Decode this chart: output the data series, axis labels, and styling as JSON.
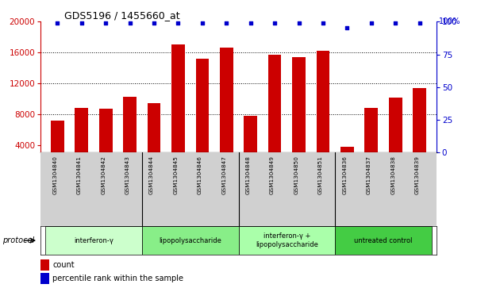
{
  "title": "GDS5196 / 1455660_at",
  "samples": [
    "GSM1304840",
    "GSM1304841",
    "GSM1304842",
    "GSM1304843",
    "GSM1304844",
    "GSM1304845",
    "GSM1304846",
    "GSM1304847",
    "GSM1304848",
    "GSM1304849",
    "GSM1304850",
    "GSM1304851",
    "GSM1304836",
    "GSM1304837",
    "GSM1304838",
    "GSM1304839"
  ],
  "counts": [
    7200,
    8800,
    8700,
    10200,
    9400,
    17000,
    15200,
    16600,
    7800,
    15700,
    15400,
    16200,
    3800,
    8800,
    10100,
    11400
  ],
  "percentile_ranks": [
    99,
    99,
    99,
    99,
    99,
    99,
    99,
    99,
    99,
    99,
    99,
    99,
    95,
    99,
    99,
    99
  ],
  "bar_color": "#cc0000",
  "percentile_color": "#0000cc",
  "ylim_left": [
    3000,
    20000
  ],
  "ylim_right": [
    0,
    100
  ],
  "yticks_left": [
    4000,
    8000,
    12000,
    16000,
    20000
  ],
  "yticks_right": [
    0,
    25,
    50,
    75,
    100
  ],
  "protocols": [
    {
      "label": "interferon-γ",
      "start": 0,
      "end": 4,
      "color": "#ccffcc"
    },
    {
      "label": "lipopolysaccharide",
      "start": 4,
      "end": 8,
      "color": "#88ee88"
    },
    {
      "label": "interferon-γ +\nlipopolysaccharide",
      "start": 8,
      "end": 12,
      "color": "#aaffaa"
    },
    {
      "label": "untreated control",
      "start": 12,
      "end": 16,
      "color": "#44cc44"
    }
  ],
  "sample_bg_color": "#d0d0d0",
  "xlabel_color": "#cc0000",
  "percentile_dot_color": "#0000cc"
}
